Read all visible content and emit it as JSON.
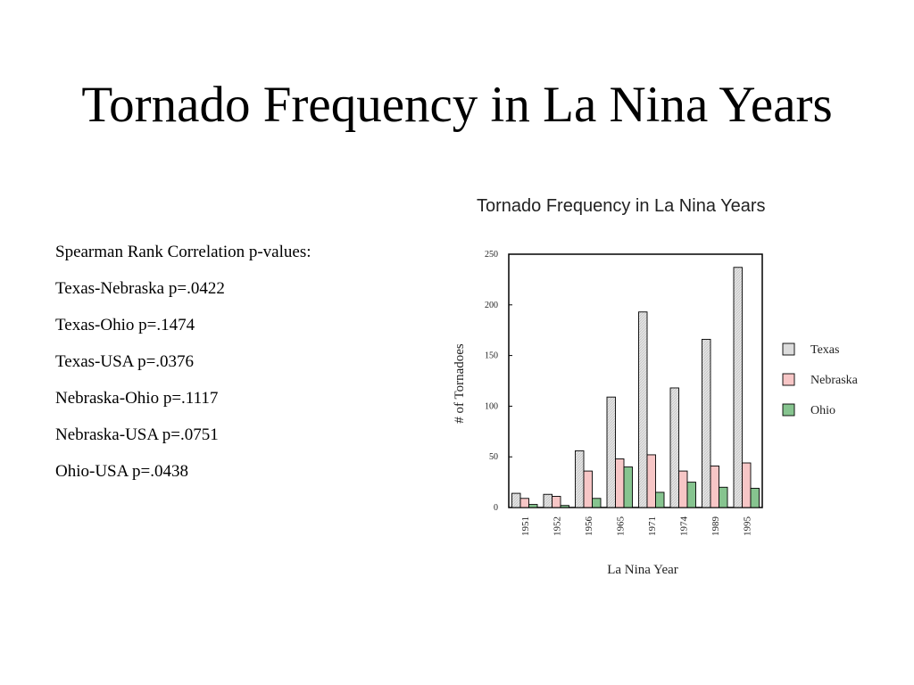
{
  "slide": {
    "title": "Tornado Frequency in La Nina Years",
    "stats": {
      "heading": "Spearman Rank Correlation p-values:",
      "items": [
        "Texas-Nebraska p=.0422",
        "Texas-Ohio p=.1474",
        "Texas-USA p=.0376",
        "Nebraska-Ohio p=.1117",
        "Nebraska-USA p=.0751",
        "Ohio-USA p=.0438"
      ]
    }
  },
  "chart_data": {
    "type": "bar",
    "title": "Tornado Frequency in La Nina Years",
    "xlabel": "La Nina Year",
    "ylabel": "# of Tornadoes",
    "categories": [
      "1951",
      "1952",
      "1956",
      "1965",
      "1971",
      "1974",
      "1989",
      "1995"
    ],
    "yticks": [
      0,
      50,
      100,
      150,
      200,
      250
    ],
    "ylim": [
      0,
      250
    ],
    "grid": false,
    "legend_position": "right",
    "series": [
      {
        "name": "Texas",
        "color": "#d9d9d9",
        "values": [
          14,
          13,
          56,
          109,
          193,
          118,
          166,
          237
        ]
      },
      {
        "name": "Nebraska",
        "color": "#f7c6c6",
        "values": [
          9,
          11,
          36,
          48,
          52,
          36,
          41,
          44
        ]
      },
      {
        "name": "Ohio",
        "color": "#86c48f",
        "values": [
          3,
          2,
          9,
          40,
          15,
          25,
          20,
          19
        ]
      }
    ]
  }
}
